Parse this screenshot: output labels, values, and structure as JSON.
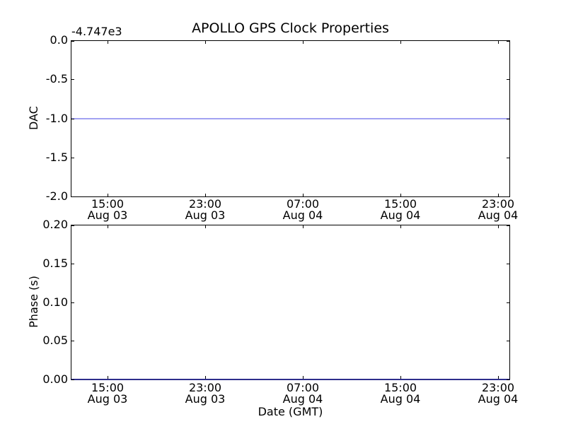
{
  "chart_data": [
    {
      "type": "line",
      "title": "APOLLO GPS Clock Properties",
      "ylabel": "DAC",
      "xlabel": "",
      "y_offset_text": "-4.747e3",
      "ylim": [
        -2.0,
        0.0
      ],
      "yticks": [
        0.0,
        -0.5,
        -1.0,
        -1.5,
        -2.0
      ],
      "ytick_labels": [
        "0.0",
        "-0.5",
        "-1.0",
        "-1.5",
        "-2.0"
      ],
      "xtick_labels": [
        [
          "15:00",
          "Aug 03"
        ],
        [
          "23:00",
          "Aug 03"
        ],
        [
          "07:00",
          "Aug 04"
        ],
        [
          "15:00",
          "Aug 04"
        ],
        [
          "23:00",
          "Aug 04"
        ]
      ],
      "grid": false,
      "legend": false,
      "series": [
        {
          "name": "DAC",
          "color": "#0000ff",
          "render_color": "#a2a2f2",
          "shape": "constant-horizontal-line",
          "value": -1.0,
          "value_with_offset": -4748.0
        }
      ]
    },
    {
      "type": "line",
      "title": "",
      "ylabel": "Phase (s)",
      "xlabel": "Date (GMT)",
      "ylim": [
        0.0,
        0.2
      ],
      "yticks": [
        0.2,
        0.15,
        0.1,
        0.05,
        0.0
      ],
      "ytick_labels": [
        "0.20",
        "0.15",
        "0.10",
        "0.05",
        "0.00"
      ],
      "xtick_labels": [
        [
          "15:00",
          "Aug 03"
        ],
        [
          "23:00",
          "Aug 03"
        ],
        [
          "07:00",
          "Aug 04"
        ],
        [
          "15:00",
          "Aug 04"
        ],
        [
          "23:00",
          "Aug 04"
        ]
      ],
      "grid": false,
      "legend": false,
      "series": [
        {
          "name": "Phase",
          "color": "#0000ff",
          "render_color": "#2e2e8c",
          "shape": "constant-horizontal-line",
          "value": 0.0
        }
      ]
    }
  ],
  "colors": {
    "background": "#ffffff",
    "spine": "#000000",
    "text": "#000000"
  }
}
